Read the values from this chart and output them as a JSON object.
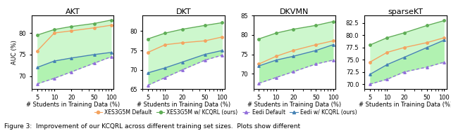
{
  "x": [
    5,
    10,
    20,
    50,
    100
  ],
  "panels": [
    {
      "title": "AKT",
      "orange": [
        75.8,
        80.0,
        80.5,
        81.2,
        81.8
      ],
      "green": [
        79.5,
        80.8,
        81.5,
        82.2,
        83.0
      ],
      "blue": [
        72.0,
        73.5,
        74.2,
        75.0,
        75.5
      ],
      "purple": [
        68.2,
        69.5,
        71.0,
        73.0,
        74.5
      ],
      "ylabel": "AUC (%)",
      "ylim": [
        67,
        84
      ]
    },
    {
      "title": "DKT",
      "orange": [
        74.5,
        76.5,
        77.0,
        77.5,
        78.5
      ],
      "green": [
        78.0,
        79.5,
        80.5,
        81.5,
        82.2
      ],
      "blue": [
        69.2,
        70.5,
        72.0,
        74.0,
        75.0
      ],
      "purple": [
        66.0,
        68.0,
        70.0,
        72.5,
        73.8
      ],
      "ylabel": "",
      "ylim": [
        65,
        84
      ]
    },
    {
      "title": "DKVMN",
      "orange": [
        72.5,
        74.5,
        76.0,
        77.5,
        78.5
      ],
      "green": [
        79.0,
        80.5,
        81.5,
        82.5,
        83.5
      ],
      "blue": [
        72.0,
        73.5,
        74.5,
        76.0,
        77.5
      ],
      "purple": [
        67.5,
        69.0,
        70.5,
        72.5,
        73.5
      ],
      "ylabel": "",
      "ylim": [
        66,
        85
      ]
    },
    {
      "title": "sparseKT",
      "orange": [
        74.5,
        76.5,
        77.5,
        78.5,
        79.5
      ],
      "green": [
        78.0,
        79.5,
        80.5,
        82.0,
        83.0
      ],
      "blue": [
        72.0,
        74.0,
        75.5,
        77.5,
        79.0
      ],
      "purple": [
        70.0,
        71.0,
        72.5,
        73.5,
        74.5
      ],
      "ylabel": "",
      "ylim": [
        69,
        84
      ]
    }
  ],
  "colors": {
    "orange": "#f4a460",
    "green": "#5fad56",
    "blue": "#4682b4",
    "purple": "#9370db"
  },
  "fill_color": "#90ee90",
  "fill_alpha": 0.45,
  "xlabel": "# Students in Training Data (%)",
  "legend_labels": [
    "XES3G5M Default",
    "XES3G5M w/ KCQRL (ours)",
    "Eedi Default",
    "Eedi w/ KCQRL (ours)"
  ],
  "legend_markers": [
    "o",
    "o",
    "^",
    "^"
  ],
  "legend_colors": [
    "#f4a460",
    "#5fad56",
    "#9370db",
    "#4682b4"
  ],
  "caption": "Figure 3:  Improvement of our KCQRL across different training set sizes.  Plots show different",
  "xticks": [
    5,
    10,
    20,
    50,
    100
  ],
  "title_fontsize": 8,
  "axis_fontsize": 6,
  "tick_fontsize": 6
}
